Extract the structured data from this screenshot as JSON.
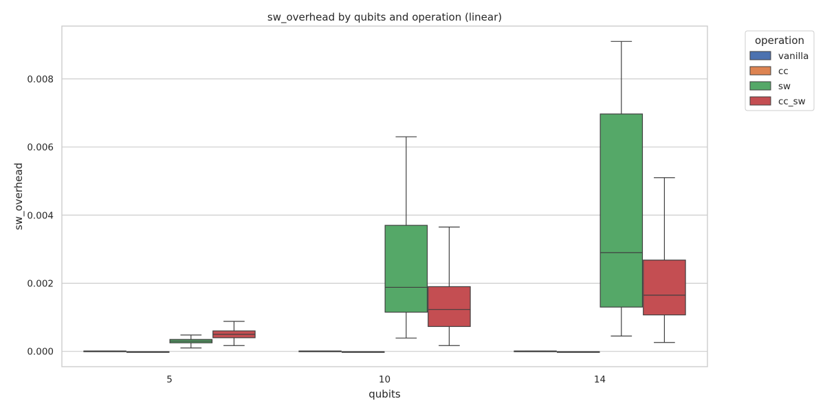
{
  "chart_data": {
    "type": "box",
    "title": "sw_overhead by qubits and operation (linear)",
    "xlabel": "qubits",
    "ylabel": "sw_overhead",
    "categories": [
      "5",
      "10",
      "14"
    ],
    "ylim": [
      -0.00045,
      0.00955
    ],
    "yticks": [
      0.0,
      0.002,
      0.004,
      0.006,
      0.008
    ],
    "ytick_labels": [
      "0.000",
      "0.002",
      "0.004",
      "0.006",
      "0.008"
    ],
    "grid": true,
    "legend": {
      "title": "operation",
      "position": "outside-top-right",
      "entries": [
        "vanilla",
        "cc",
        "sw",
        "cc_sw"
      ]
    },
    "series": [
      {
        "name": "vanilla",
        "color": "#4C72B0",
        "boxes": [
          {
            "min": 1e-05,
            "q1": 1e-05,
            "median": 1e-05,
            "q3": 1e-05,
            "max": 1e-05
          },
          {
            "min": 1e-05,
            "q1": 1e-05,
            "median": 1e-05,
            "q3": 1e-05,
            "max": 1e-05
          },
          {
            "min": 1e-05,
            "q1": 1e-05,
            "median": 1e-05,
            "q3": 1e-05,
            "max": 1e-05
          }
        ]
      },
      {
        "name": "cc",
        "color": "#DD8452",
        "boxes": [
          {
            "min": -1e-05,
            "q1": -1e-05,
            "median": -1e-05,
            "q3": -1e-05,
            "max": -1e-05
          },
          {
            "min": -1e-05,
            "q1": -1e-05,
            "median": -1e-05,
            "q3": -1e-05,
            "max": -1e-05
          },
          {
            "min": -1e-05,
            "q1": -1e-05,
            "median": -1e-05,
            "q3": -1e-05,
            "max": -1e-05
          }
        ]
      },
      {
        "name": "sw",
        "color": "#55A868",
        "boxes": [
          {
            "min": 0.0001,
            "q1": 0.00025,
            "median": 0.0003,
            "q3": 0.00035,
            "max": 0.00048
          },
          {
            "min": 0.00039,
            "q1": 0.00115,
            "median": 0.00188,
            "q3": 0.0037,
            "max": 0.0063
          },
          {
            "min": 0.00045,
            "q1": 0.0013,
            "median": 0.0029,
            "q3": 0.00697,
            "max": 0.0091
          }
        ]
      },
      {
        "name": "cc_sw",
        "color": "#C44E52",
        "boxes": [
          {
            "min": 0.00017,
            "q1": 0.0004,
            "median": 0.0005,
            "q3": 0.0006,
            "max": 0.00088
          },
          {
            "min": 0.00017,
            "q1": 0.00073,
            "median": 0.00123,
            "q3": 0.0019,
            "max": 0.00365
          },
          {
            "min": 0.00026,
            "q1": 0.00107,
            "median": 0.00165,
            "q3": 0.00268,
            "max": 0.0051
          }
        ]
      }
    ]
  }
}
